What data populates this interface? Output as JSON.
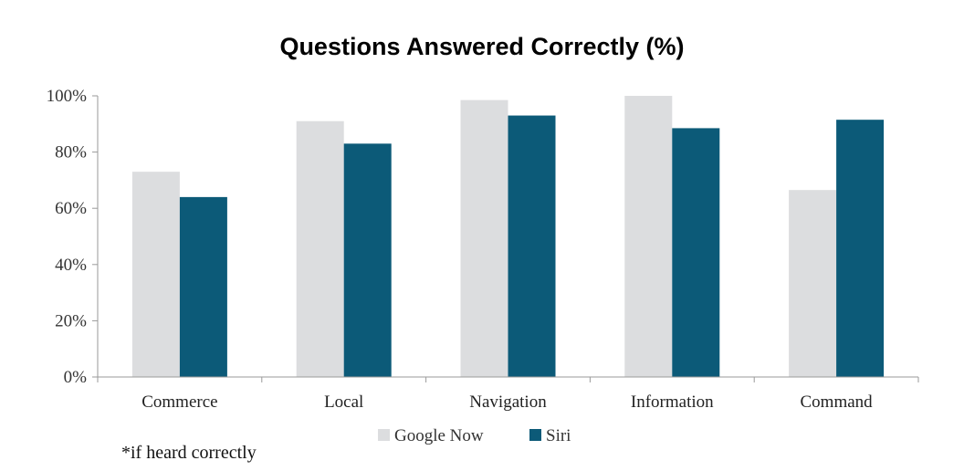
{
  "chart_data": {
    "type": "bar",
    "title": "Questions Answered Correctly (%)",
    "categories": [
      "Commerce",
      "Local",
      "Navigation",
      "Information",
      "Command"
    ],
    "series": [
      {
        "name": "Google Now",
        "values": [
          73,
          91,
          98.5,
          100,
          66.5
        ],
        "color": "#dcdddf"
      },
      {
        "name": "Siri",
        "values": [
          64,
          83,
          93,
          88.5,
          91.5
        ],
        "color": "#0c5a78"
      }
    ],
    "yticks": [
      "0%",
      "20%",
      "40%",
      "60%",
      "80%",
      "100%"
    ],
    "ylim": [
      0,
      100
    ],
    "legend_position": "bottom-center",
    "grid": false
  },
  "footnote": "*if heard correctly"
}
